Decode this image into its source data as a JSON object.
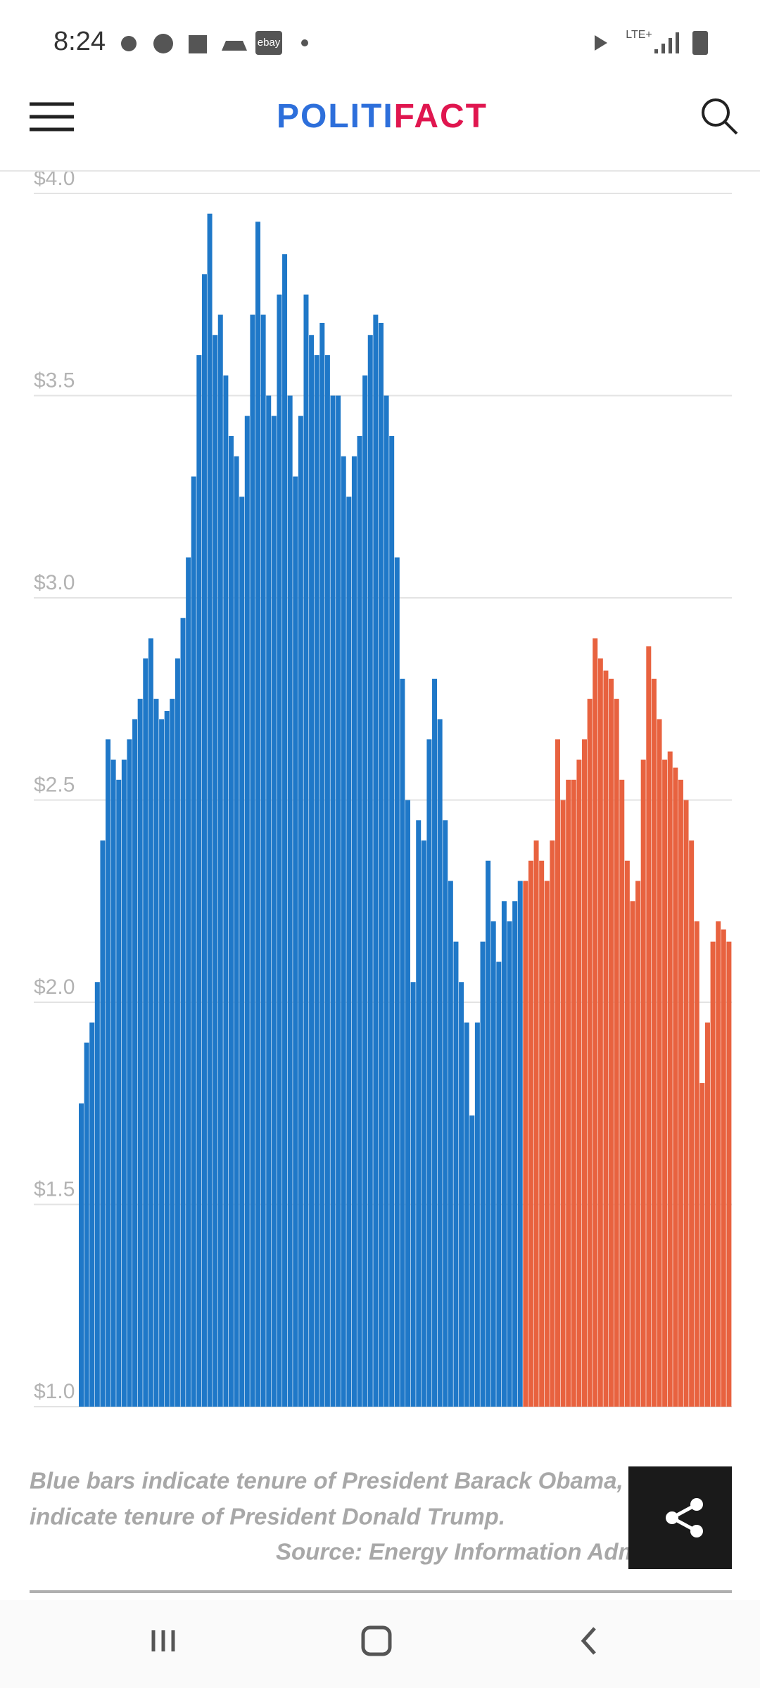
{
  "status_bar": {
    "time": "8:24",
    "ebay_icon": "ebay",
    "network": "LTE+"
  },
  "header": {
    "logo_left": "POLITI",
    "logo_right": "FACT"
  },
  "chart_data": {
    "type": "bar",
    "categories": [
      null,
      null,
      null,
      null,
      null,
      null,
      null,
      null,
      null,
      null,
      null,
      null,
      null,
      null,
      null,
      null,
      null,
      null,
      null,
      null,
      null,
      null,
      null,
      null,
      null,
      null,
      null,
      null,
      null,
      null,
      null,
      null,
      null,
      null,
      null,
      null,
      null,
      null,
      null,
      null,
      null,
      null,
      null,
      null,
      null,
      null,
      null,
      null,
      null,
      null,
      null,
      null,
      null,
      null,
      null,
      null,
      null,
      null,
      null,
      null,
      null,
      null,
      null,
      null,
      null,
      null,
      null,
      null,
      null,
      null,
      null,
      null,
      null,
      null,
      null,
      null,
      null,
      null,
      null,
      null,
      null,
      null,
      null,
      null,
      null,
      null,
      null,
      null,
      null,
      null,
      null,
      null,
      null,
      null,
      null,
      null,
      null,
      null,
      null,
      null,
      null,
      null,
      null,
      null,
      null,
      null,
      null,
      null,
      null,
      null,
      null,
      null,
      null,
      null,
      null,
      null,
      null,
      null,
      null,
      null,
      null,
      null
    ],
    "series": [
      {
        "color": "#1f78c8",
        "values": [
          1.75,
          1.9,
          1.95,
          2.05,
          2.4,
          2.65,
          2.6,
          2.55,
          2.6,
          2.65,
          2.7,
          2.75,
          2.85,
          2.9,
          2.75,
          2.7,
          2.72,
          2.75,
          2.85,
          2.95,
          3.1,
          3.3,
          3.6,
          3.8,
          3.95,
          3.65,
          3.7,
          3.55,
          3.4,
          3.35,
          3.25,
          3.45,
          3.7,
          3.93,
          3.7,
          3.5,
          3.45,
          3.75,
          3.85,
          3.5,
          3.3,
          3.45,
          3.75,
          3.65,
          3.6,
          3.68,
          3.6,
          3.5,
          3.5,
          3.35,
          3.25,
          3.35,
          3.4,
          3.55,
          3.65,
          3.7,
          3.68,
          3.5,
          3.4,
          3.1,
          2.8,
          2.5,
          2.05,
          2.45,
          2.4,
          2.65,
          2.8,
          2.7,
          2.45,
          2.3,
          2.15,
          2.05,
          1.95,
          1.72,
          1.95,
          2.15,
          2.35,
          2.2,
          2.1,
          2.25,
          2.2,
          2.25,
          2.3,
          null,
          null,
          null,
          null,
          null,
          null,
          null,
          null,
          null,
          null,
          null,
          null,
          null,
          null,
          null,
          null,
          null,
          null,
          null,
          null,
          null,
          null,
          null,
          null,
          null,
          null,
          null,
          null,
          null,
          null,
          null,
          null,
          null,
          null,
          null,
          null,
          null,
          null,
          null
        ]
      },
      {
        "color": "#e8623f",
        "values": [
          null,
          null,
          null,
          null,
          null,
          null,
          null,
          null,
          null,
          null,
          null,
          null,
          null,
          null,
          null,
          null,
          null,
          null,
          null,
          null,
          null,
          null,
          null,
          null,
          null,
          null,
          null,
          null,
          null,
          null,
          null,
          null,
          null,
          null,
          null,
          null,
          null,
          null,
          null,
          null,
          null,
          null,
          null,
          null,
          null,
          null,
          null,
          null,
          null,
          null,
          null,
          null,
          null,
          null,
          null,
          null,
          null,
          null,
          null,
          null,
          null,
          null,
          null,
          null,
          null,
          null,
          null,
          null,
          null,
          null,
          null,
          null,
          null,
          null,
          null,
          null,
          null,
          null,
          null,
          null,
          null,
          null,
          null,
          2.3,
          2.35,
          2.4,
          2.35,
          2.3,
          2.4,
          2.65,
          2.5,
          2.55,
          2.55,
          2.6,
          2.65,
          2.75,
          2.9,
          2.85,
          2.82,
          2.8,
          2.75,
          2.55,
          2.35,
          2.25,
          2.3,
          2.6,
          2.88,
          2.8,
          2.7,
          2.6,
          2.62,
          2.58,
          2.55,
          2.5,
          2.4,
          2.2,
          1.8,
          1.95,
          2.15,
          2.2,
          2.18,
          2.15
        ]
      }
    ],
    "ylim": [
      1,
      4
    ],
    "yticks": [
      {
        "value": 1,
        "label": "$1.0"
      },
      {
        "value": 1.5,
        "label": "$1.5"
      },
      {
        "value": 2,
        "label": "$2.0"
      },
      {
        "value": 2.5,
        "label": "$2.5"
      },
      {
        "value": 3,
        "label": "$3.0"
      },
      {
        "value": 3.5,
        "label": "$3.5"
      },
      {
        "value": 4,
        "label": "$4.0"
      }
    ],
    "grid": true
  },
  "caption": {
    "line1": "Blue bars indicate tenure of President Barack Obama, re",
    "line2": "indicate tenure of President Donald Trump.",
    "source": "Source: Energy Information Admi"
  }
}
